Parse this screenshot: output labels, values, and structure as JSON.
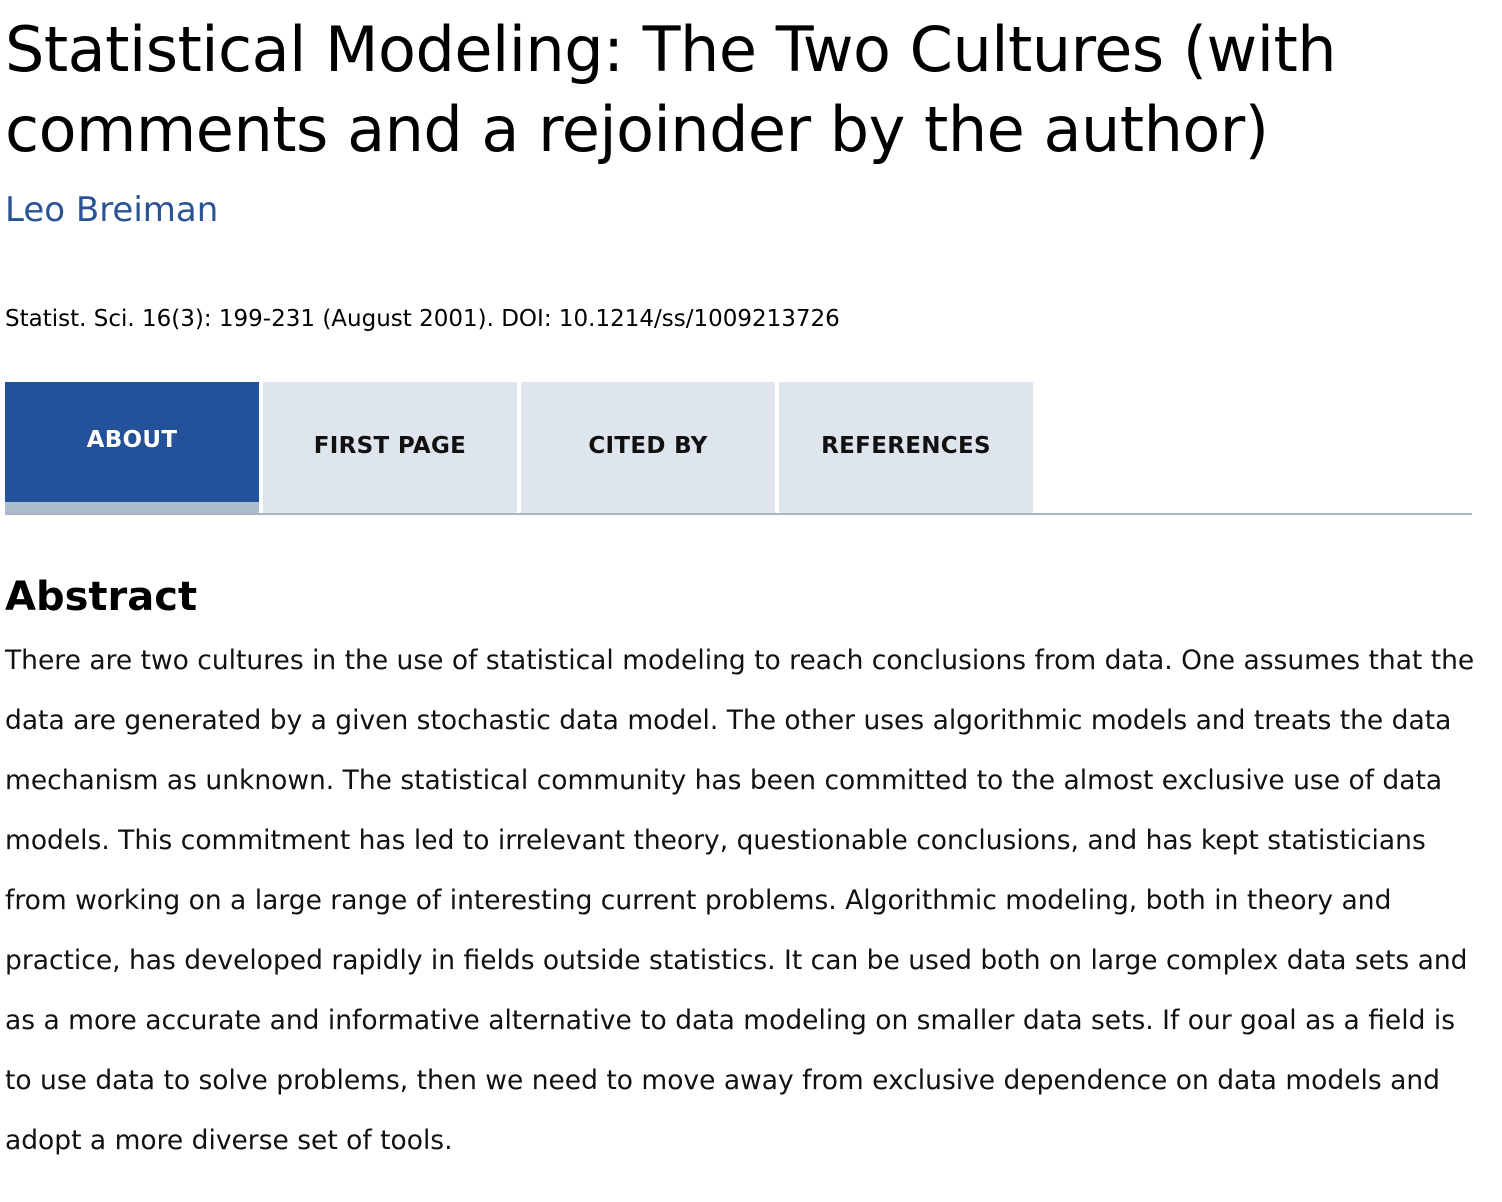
{
  "article": {
    "title": "Statistical Modeling: The Two Cultures (with comments and a rejoinder by the author)",
    "author": "Leo Breiman",
    "citation": "Statist. Sci. 16(3): 199-231 (August 2001). DOI: 10.1214/ss/1009213726"
  },
  "tabs": [
    {
      "label": "ABOUT",
      "active": true
    },
    {
      "label": "FIRST PAGE",
      "active": false
    },
    {
      "label": "CITED BY",
      "active": false
    },
    {
      "label": "REFERENCES",
      "active": false
    }
  ],
  "abstract": {
    "heading": "Abstract",
    "text": "There are two cultures in the use of statistical modeling to reach conclusions from data. One assumes that the data are generated by a given stochastic data model. The other uses algorithmic models and treats the data mechanism as unknown. The statistical community has been committed to the almost exclusive use of data models. This commitment has led to irrelevant theory, questionable conclusions, and has kept statisticians from working on a large range of interesting current problems. Algorithmic modeling, both in theory and practice, has developed rapidly in fields outside statistics. It can be used both on large complex data sets and as a more accurate and informative alternative to data modeling on smaller data sets. If our goal as a field is to use data to solve problems, then we need to move away from exclusive dependence on data models and adopt a more diverse set of tools."
  },
  "colors": {
    "author_link": "#2a5394",
    "tab_active_bg": "#24529a",
    "tab_inactive_bg": "#dfe5ed",
    "tab_active_underline": "#aebdcd"
  }
}
